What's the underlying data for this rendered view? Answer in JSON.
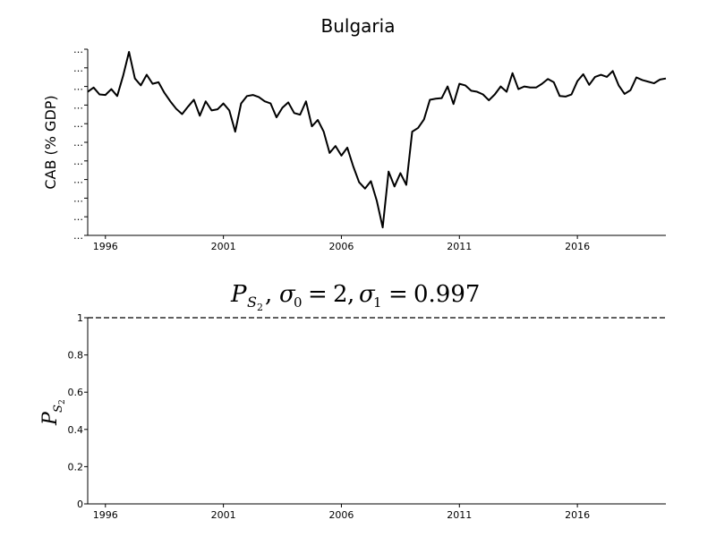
{
  "chart_data": [
    {
      "type": "line",
      "title": "Bulgaria",
      "ylabel": "CAB (% GDP)",
      "xlabel": "",
      "x_ticks": [
        "1996",
        "2001",
        "2006",
        "2011",
        "2016"
      ],
      "y_tick_labels": [
        "…",
        "…",
        "…",
        "…",
        "…",
        "…",
        "…",
        "…",
        "…",
        "…",
        "…"
      ],
      "x_range": [
        1995.25,
        2019.75
      ],
      "ylim": [
        -30,
        5
      ],
      "grid": false,
      "series": [
        {
          "x": [
            1995.25,
            1995.5,
            1995.75,
            1996.0,
            1996.25,
            1996.5,
            1996.75,
            1997.0,
            1997.25,
            1997.5,
            1997.75,
            1998.0,
            1998.25,
            1998.5,
            1998.75,
            1999.0,
            1999.25,
            1999.5,
            1999.75,
            2000.0,
            2000.25,
            2000.5,
            2000.75,
            2001.0,
            2001.25,
            2001.5,
            2001.75,
            2002.0,
            2002.25,
            2002.5,
            2002.75,
            2003.0,
            2003.25,
            2003.5,
            2003.75,
            2004.0,
            2004.25,
            2004.5,
            2004.75,
            2005.0,
            2005.25,
            2005.5,
            2005.75,
            2006.0,
            2006.25,
            2006.5,
            2006.75,
            2007.0,
            2007.25,
            2007.5,
            2007.75,
            2008.0,
            2008.25,
            2008.5,
            2008.75,
            2009.0,
            2009.25,
            2009.5,
            2009.75,
            2010.0,
            2010.25,
            2010.5,
            2010.75,
            2011.0,
            2011.25,
            2011.5,
            2011.75,
            2012.0,
            2012.25,
            2012.5,
            2012.75,
            2013.0,
            2013.25,
            2013.5,
            2013.75,
            2014.0,
            2014.25,
            2014.5,
            2014.75,
            2015.0,
            2015.25,
            2015.5,
            2015.75,
            2016.0,
            2016.25,
            2016.5,
            2016.75,
            2017.0,
            2017.25,
            2017.5,
            2017.75,
            2018.0,
            2018.25,
            2018.5,
            2018.75,
            2019.0,
            2019.25,
            2019.5,
            2019.75
          ],
          "values": [
            -3,
            -2.2,
            -3.5,
            -3.6,
            -2.5,
            -3.8,
            0,
            4.5,
            -0.5,
            -1.8,
            0.2,
            -1.5,
            -1.2,
            -3.2,
            -4.8,
            -6.2,
            -7.2,
            -5.8,
            -4.5,
            -7.5,
            -4.8,
            -6.5,
            -6.3,
            -5.2,
            -6.5,
            -10.5,
            -5.2,
            -3.8,
            -3.6,
            -4.0,
            -4.8,
            -5.2,
            -7.8,
            -6,
            -5,
            -7,
            -7.3,
            -4.8,
            -9.5,
            -8.3,
            -10.5,
            -14.5,
            -13.2,
            -15,
            -13.5,
            -17,
            -20,
            -21.2,
            -19.8,
            -23.5,
            -28.5,
            -18,
            -20.8,
            -18.3,
            -20.5,
            -10.5,
            -9.8,
            -8.2,
            -4.5,
            -4.3,
            -4.2,
            -2,
            -5.3,
            -1.5,
            -1.8,
            -2.8,
            -3,
            -3.5,
            -4.6,
            -3.5,
            -2,
            -3,
            0.5,
            -2.5,
            -2,
            -2.2,
            -2.2,
            -1.5,
            -0.6,
            -1.2,
            -3.8,
            -3.9,
            -3.5,
            -1,
            0.3,
            -1.7,
            -0.2,
            0.2,
            -0.2,
            0.9,
            -1.8,
            -3.4,
            -2.7,
            -0.3,
            -0.8,
            -1.1,
            -1.4,
            -0.7,
            -0.5
          ]
        }
      ]
    },
    {
      "type": "line",
      "title_parts": {
        "p": "P",
        "sub": "S",
        "subsub": "2",
        "sigma0_sym": "σ",
        "sigma0_idx": "0",
        "sigma0_val": "2",
        "sigma1_sym": "σ",
        "sigma1_idx": "1",
        "sigma1_val": "0.997"
      },
      "ylabel_parts": {
        "p": "P",
        "sub": "S",
        "subsub": "2"
      },
      "x_ticks": [
        "1996",
        "2001",
        "2006",
        "2011",
        "2016"
      ],
      "y_ticks": [
        "0",
        "0.2",
        "0.4",
        "0.6",
        "0.8",
        "1"
      ],
      "y_tick_values": [
        0,
        0.2,
        0.4,
        0.6,
        0.8,
        1
      ],
      "x_range": [
        1995.25,
        2019.75
      ],
      "ylim": [
        0,
        1
      ],
      "grid": false,
      "series": [
        {
          "x": [
            1995.25,
            2019.75
          ],
          "values": [
            1,
            1
          ],
          "style": "dashed"
        }
      ]
    }
  ]
}
